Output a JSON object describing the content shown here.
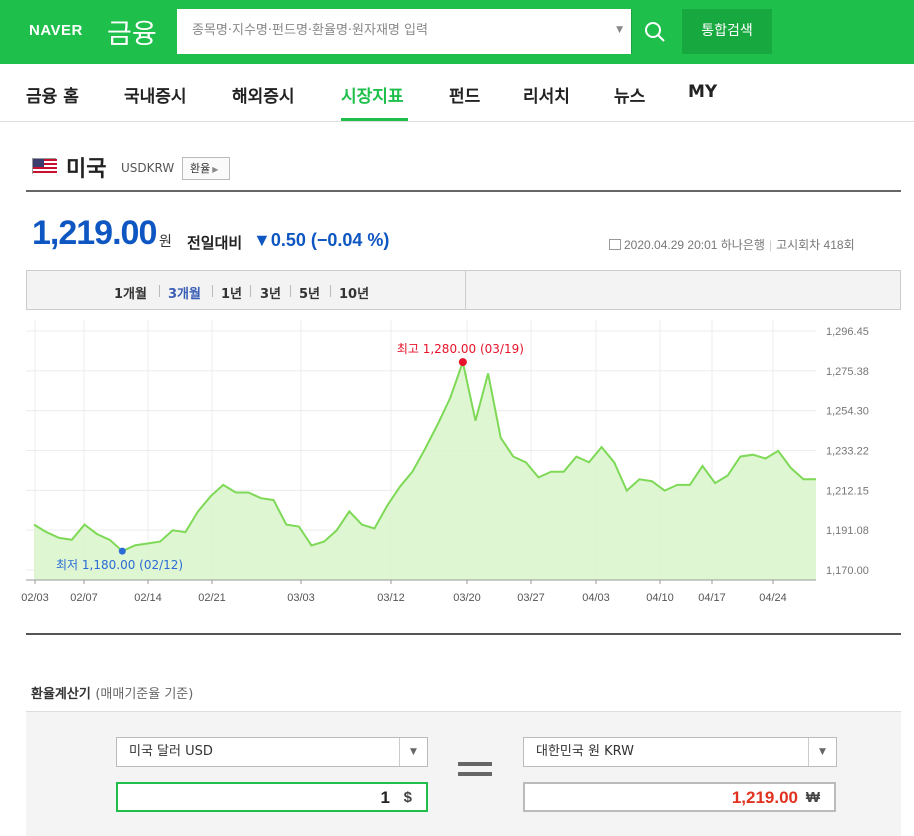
{
  "header": {
    "logo": "NAVER",
    "logo_sub": "금융",
    "search_placeholder": "종목명·지수명·펀드명·환율명·원자재명 입력",
    "integrated_search_label": "통합검색"
  },
  "nav": {
    "items": [
      {
        "label": "금융 홈"
      },
      {
        "label": "국내증시"
      },
      {
        "label": "해외증시"
      },
      {
        "label": "시장지표"
      },
      {
        "label": "펀드"
      },
      {
        "label": "리서치"
      },
      {
        "label": "뉴스"
      },
      {
        "label": "MY"
      }
    ],
    "active": "시장지표"
  },
  "title": {
    "name": "미국",
    "ticker": "USDKRW",
    "fx_button": "환율"
  },
  "quote": {
    "price": "1,219.00",
    "unit": "원",
    "change_label": "전일대비",
    "change": "▼0.50 (−0.04 %)",
    "datetime": "2020.04.29 20:01",
    "bank": "하나은행",
    "round": "고시회차 418회"
  },
  "periods": {
    "tabs": [
      "1개월",
      "3개월",
      "1년",
      "3년",
      "5년",
      "10년"
    ],
    "active": "3개월"
  },
  "chart_data": {
    "type": "area",
    "title": "",
    "xlabel": "",
    "ylabel": "",
    "ylim": [
      1170.0,
      1296.45
    ],
    "y_ticks": [
      "1,296.45",
      "1,275.38",
      "1,254.30",
      "1,233.22",
      "1,212.15",
      "1,191.08",
      "1,170.00"
    ],
    "x_ticks": [
      "02/03",
      "02/07",
      "02/14",
      "02/21",
      "03/03",
      "03/12",
      "03/20",
      "03/27",
      "04/03",
      "04/10",
      "04/17",
      "04/24"
    ],
    "max_label": "최고 1,280.00 (03/19)",
    "min_label": "최저 1,180.00 (02/12)",
    "colors": {
      "line": "#7ed957",
      "fill": "#d9f5cb",
      "max": "#e8132b",
      "min": "#2a6bd6"
    },
    "series": [
      {
        "values": [
          1194,
          1190,
          1187,
          1186,
          1194,
          1189,
          1186,
          1180,
          1183,
          1184,
          1185,
          1191,
          1190,
          1201,
          1209,
          1215,
          1211,
          1211,
          1208,
          1207,
          1194,
          1193,
          1183,
          1185,
          1191,
          1201,
          1194,
          1192,
          1204,
          1214,
          1222,
          1234,
          1247,
          1261,
          1280,
          1249,
          1274,
          1240,
          1230,
          1227,
          1219,
          1222,
          1222,
          1230,
          1227,
          1235,
          1227,
          1212,
          1218,
          1217,
          1212,
          1215,
          1215,
          1225,
          1216,
          1220,
          1230,
          1231,
          1229,
          1233,
          1224,
          1218,
          1218
        ]
      }
    ]
  },
  "calculator": {
    "title": "환율계산기",
    "title_note": "(매매기준율 기준)",
    "from_currency": "미국 달러 USD",
    "from_amount": "1",
    "from_unit": "$",
    "to_currency": "대한민국 원 KRW",
    "to_amount": "1,219.00",
    "to_unit": "₩"
  }
}
